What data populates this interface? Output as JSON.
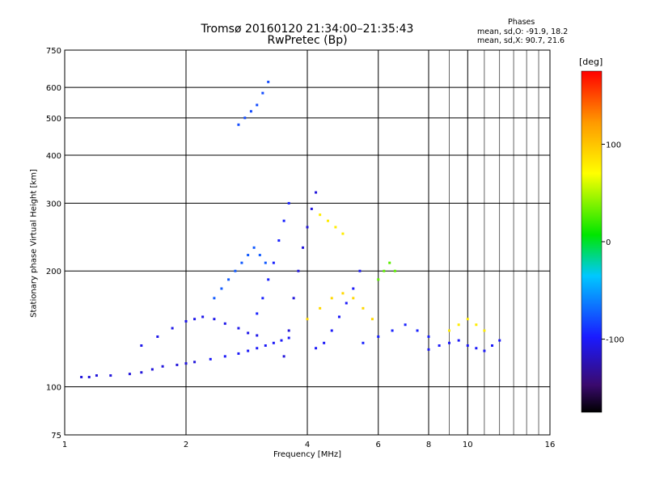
{
  "title_line1": "Tromsø 20160120 21:34:00–21:35:43",
  "title_line2": "RwPretec (Bp)",
  "stats": {
    "header": "Phases",
    "mean_o": "mean, sd,O: -91.9, 18.2",
    "mean_x": "mean, sd,X:  90.7, 21.6"
  },
  "colorbar": {
    "unit": "[deg]",
    "tick_labels": [
      "100",
      "0",
      "-100"
    ],
    "tick_values": [
      100,
      0,
      -100
    ],
    "range": [
      -175,
      175
    ],
    "scale": "rainbow: black-purple-blue-cyan-green-yellow-orange-red"
  },
  "chart_data": {
    "type": "scatter",
    "title": "Tromsø 20160120 21:34:00–21:35:43",
    "subtitle": "RwPretec (Bp)",
    "xlabel": "Frequency [MHz]",
    "ylabel": "Stationary phase Virtual Height [km]",
    "xscale": "log",
    "yscale": "log",
    "xlim": [
      1,
      16
    ],
    "ylim": [
      75,
      750
    ],
    "xticks": [
      1,
      2,
      4,
      6,
      8,
      10,
      16
    ],
    "yticks": [
      75,
      100,
      200,
      300,
      400,
      500,
      600,
      750
    ],
    "minor_xgrid": [
      9,
      11,
      12,
      13,
      14,
      15
    ],
    "grid": true,
    "color_encoding": "phase [deg]",
    "series": [
      {
        "x": [
          1.1,
          1.15,
          1.2,
          1.3,
          1.45,
          1.55,
          1.65,
          1.75,
          1.9,
          2.0,
          2.1
        ],
        "y": [
          106,
          106,
          107,
          107,
          108,
          109,
          111,
          113,
          114,
          115,
          116
        ],
        "phase": -110
      },
      {
        "x": [
          1.55,
          1.7,
          1.85,
          2.0,
          2.1,
          2.2,
          2.35,
          2.5,
          2.7,
          2.85,
          3.0
        ],
        "y": [
          128,
          135,
          142,
          148,
          150,
          152,
          150,
          146,
          142,
          138,
          136
        ],
        "phase": -105
      },
      {
        "x": [
          2.3,
          2.5,
          2.7,
          2.85,
          3.0,
          3.15,
          3.3,
          3.45,
          3.6
        ],
        "y": [
          118,
          120,
          122,
          124,
          126,
          128,
          130,
          132,
          134
        ],
        "phase": -100
      },
      {
        "x": [
          2.35,
          2.45,
          2.55,
          2.65,
          2.75,
          2.85,
          2.95,
          3.05,
          3.15
        ],
        "y": [
          170,
          180,
          190,
          200,
          210,
          220,
          230,
          220,
          210
        ],
        "phase": -75
      },
      {
        "x": [
          2.7,
          2.8,
          2.9,
          3.0,
          3.1,
          3.2
        ],
        "y": [
          480,
          500,
          520,
          540,
          580,
          620
        ],
        "phase": -80
      },
      {
        "x": [
          3.0,
          3.1,
          3.2,
          3.3,
          3.4,
          3.5,
          3.6
        ],
        "y": [
          155,
          170,
          190,
          210,
          240,
          270,
          300
        ],
        "phase": -95
      },
      {
        "x": [
          3.5,
          3.6,
          3.7,
          3.8,
          3.9,
          4.0,
          4.1,
          4.2
        ],
        "y": [
          120,
          140,
          170,
          200,
          230,
          260,
          290,
          320
        ],
        "phase": -110
      },
      {
        "x": [
          4.2,
          4.4,
          4.6,
          4.8,
          5.0,
          5.2,
          5.4
        ],
        "y": [
          126,
          130,
          140,
          152,
          165,
          180,
          200
        ],
        "phase": -100
      },
      {
        "x": [
          4.0,
          4.3,
          4.6,
          4.9,
          5.2,
          5.5,
          5.8
        ],
        "y": [
          150,
          160,
          170,
          175,
          170,
          160,
          150
        ],
        "phase": 90
      },
      {
        "x": [
          4.3,
          4.5,
          4.7,
          4.9
        ],
        "y": [
          280,
          270,
          260,
          250
        ],
        "phase": 80
      },
      {
        "x": [
          5.5,
          6.0,
          6.5,
          7.0,
          7.5,
          8.0
        ],
        "y": [
          130,
          135,
          140,
          145,
          140,
          135
        ],
        "phase": -95
      },
      {
        "x": [
          6.0,
          6.2,
          6.4,
          6.6
        ],
        "y": [
          190,
          200,
          210,
          200
        ],
        "phase": 30
      },
      {
        "x": [
          8.0,
          8.5,
          9.0,
          9.5,
          10.0,
          10.5,
          11.0,
          11.5,
          12.0
        ],
        "y": [
          125,
          128,
          130,
          132,
          128,
          126,
          124,
          128,
          132
        ],
        "phase": -100
      },
      {
        "x": [
          9.0,
          9.5,
          10.0,
          10.5,
          11.0
        ],
        "y": [
          140,
          145,
          150,
          145,
          140
        ],
        "phase": 80
      }
    ]
  }
}
